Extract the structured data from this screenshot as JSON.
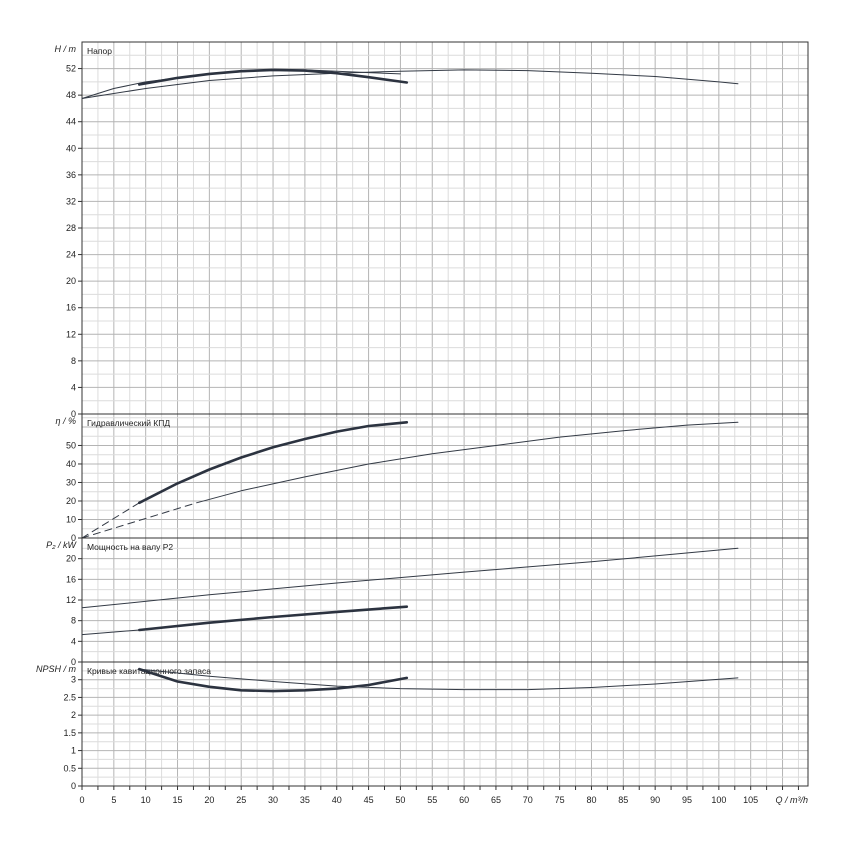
{
  "chart_data": [
    {
      "type": "line",
      "title": "Напор",
      "y_axis_label": "H / m",
      "ylim": [
        0,
        56
      ],
      "yticks": [
        0,
        4,
        8,
        12,
        16,
        20,
        24,
        28,
        32,
        36,
        40,
        44,
        48,
        52
      ],
      "grid": true,
      "series": [
        {
          "style": "thin",
          "x": [
            0,
            10,
            20,
            30,
            40,
            50,
            60,
            70,
            80,
            90,
            100,
            103
          ],
          "y": [
            47.5,
            49,
            50.2,
            50.9,
            51.3,
            51.6,
            51.8,
            51.7,
            51.3,
            50.8,
            50,
            49.7
          ]
        },
        {
          "style": "thin",
          "x": [
            0,
            5,
            10,
            20,
            30,
            35,
            40,
            45,
            50
          ],
          "y": [
            47.5,
            49,
            50,
            51.2,
            51.8,
            51.8,
            51.6,
            51.4,
            51.2
          ]
        },
        {
          "style": "thick",
          "x": [
            9,
            15,
            20,
            25,
            30,
            35,
            40,
            45,
            51
          ],
          "y": [
            49.6,
            50.6,
            51.2,
            51.6,
            51.8,
            51.7,
            51.3,
            50.7,
            49.9
          ]
        }
      ]
    },
    {
      "type": "line",
      "title": "Гидравлический КПД",
      "y_axis_label": "η / %",
      "ylim": [
        0,
        67
      ],
      "yticks": [
        0,
        10,
        20,
        30,
        40,
        50
      ],
      "grid": true,
      "series": [
        {
          "style": "dashed",
          "x": [
            0,
            9
          ],
          "y": [
            0,
            19
          ]
        },
        {
          "style": "thick",
          "x": [
            9,
            15,
            20,
            25,
            30,
            35,
            40,
            45,
            51
          ],
          "y": [
            19,
            29.5,
            37,
            43.5,
            49,
            53.5,
            57.5,
            60.5,
            62.5
          ]
        },
        {
          "style": "dashed",
          "x": [
            0,
            18
          ],
          "y": [
            0,
            19
          ]
        },
        {
          "style": "thin",
          "x": [
            18,
            25,
            35,
            45,
            55,
            65,
            75,
            85,
            95,
            103
          ],
          "y": [
            19,
            25.5,
            33,
            40,
            45.5,
            50,
            54.5,
            58,
            61,
            62.5
          ]
        }
      ]
    },
    {
      "type": "line",
      "title": "Мощность на валу P2",
      "y_axis_label": "P₂ / kW",
      "ylim": [
        0,
        24
      ],
      "yticks": [
        0,
        4,
        8,
        12,
        16,
        20
      ],
      "grid": true,
      "series": [
        {
          "style": "thin",
          "x": [
            0,
            20,
            40,
            60,
            80,
            103
          ],
          "y": [
            10.5,
            13,
            15.3,
            17.4,
            19.4,
            22
          ]
        },
        {
          "style": "thin",
          "x": [
            0,
            9
          ],
          "y": [
            5.3,
            6.2
          ]
        },
        {
          "style": "thick",
          "x": [
            9,
            20,
            30,
            40,
            51
          ],
          "y": [
            6.2,
            7.6,
            8.7,
            9.7,
            10.7
          ]
        }
      ]
    },
    {
      "type": "line",
      "title": "Кривые кавитационного запаса",
      "y_axis_label": "NPSH / m",
      "ylim": [
        0,
        3.5
      ],
      "yticks": [
        0,
        0.5,
        1,
        1.5,
        2,
        2.5,
        3
      ],
      "ytick_labels": [
        "0",
        "0.5",
        "1",
        "1.5",
        "2",
        "2.5",
        "3"
      ],
      "grid": true,
      "series": [
        {
          "style": "thin",
          "x": [
            9,
            20,
            30,
            40,
            50,
            60,
            70,
            80,
            90,
            103
          ],
          "y": [
            3.3,
            3.1,
            2.95,
            2.82,
            2.75,
            2.72,
            2.72,
            2.78,
            2.88,
            3.05
          ]
        },
        {
          "style": "thick",
          "x": [
            9,
            15,
            20,
            25,
            30,
            35,
            40,
            45,
            51
          ],
          "y": [
            3.3,
            2.95,
            2.8,
            2.7,
            2.68,
            2.7,
            2.75,
            2.85,
            3.05
          ]
        }
      ]
    }
  ],
  "x_axis": {
    "label": "Q / m³/h",
    "xlim": [
      0,
      114
    ],
    "ticks": [
      0,
      5,
      10,
      15,
      20,
      25,
      30,
      35,
      40,
      45,
      50,
      55,
      60,
      65,
      70,
      75,
      80,
      85,
      90,
      95,
      100,
      105
    ]
  }
}
